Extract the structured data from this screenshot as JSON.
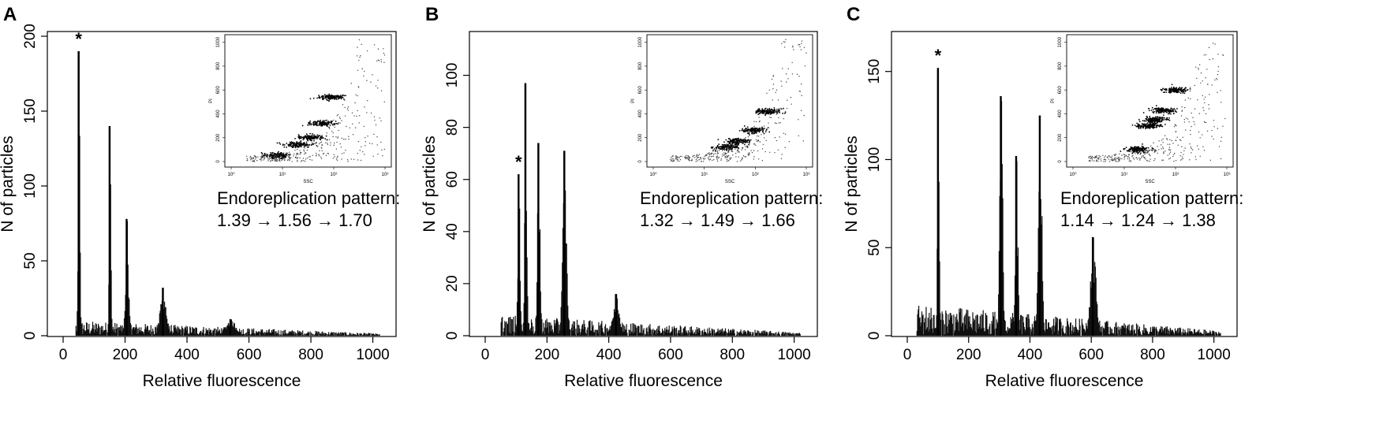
{
  "figure": {
    "panels": [
      {
        "letter": "A",
        "annotation_line1": "Endoreplication pattern:",
        "annotation_line2": "1.39 → 1.56 → 1.70",
        "star": "*"
      },
      {
        "letter": "B",
        "annotation_line1": "Endoreplication pattern:",
        "annotation_line2": "1.32 → 1.49 → 1.66",
        "star": "*"
      },
      {
        "letter": "C",
        "annotation_line1": "Endoreplication pattern:",
        "annotation_line2": "1.14 → 1.24 → 1.38",
        "star": "*"
      }
    ]
  },
  "chart_data": [
    {
      "type": "bar",
      "panel": "A",
      "xlabel": "Relative fluorescence",
      "ylabel": "N of particles",
      "xlim": [
        0,
        1024
      ],
      "ylim": [
        0,
        200
      ],
      "xticks": [
        0,
        200,
        400,
        600,
        800,
        1000
      ],
      "yticks": [
        0,
        50,
        100,
        150,
        200
      ],
      "data_range": [
        40,
        1020
      ],
      "baseline_max": 10,
      "peaks": [
        {
          "x": 50,
          "y": 190,
          "width": 4
        },
        {
          "x": 150,
          "y": 140,
          "width": 4
        },
        {
          "x": 205,
          "y": 78,
          "width": 7
        },
        {
          "x": 322,
          "y": 32,
          "width": 14
        },
        {
          "x": 540,
          "y": 11,
          "width": 25
        }
      ],
      "star_x": 50,
      "inset": {
        "xlabel": "SSC",
        "ylabel": "PI",
        "xscale": "log",
        "xlim_exp": [
          0,
          3
        ],
        "xtick_labels": [
          "10⁰",
          "10¹",
          "10²",
          "10³"
        ],
        "ylim": [
          0,
          1024
        ],
        "ytick_labels": [
          "0",
          "200",
          "400",
          "600",
          "800",
          "1000"
        ],
        "clusters": [
          {
            "log_ssc": 0.9,
            "pi": 50
          },
          {
            "log_ssc": 1.3,
            "pi": 140
          },
          {
            "log_ssc": 1.55,
            "pi": 200
          },
          {
            "log_ssc": 1.75,
            "pi": 320
          },
          {
            "log_ssc": 1.95,
            "pi": 540
          }
        ]
      }
    },
    {
      "type": "bar",
      "panel": "B",
      "xlabel": "Relative fluorescence",
      "ylabel": "N of particles",
      "xlim": [
        0,
        1024
      ],
      "ylim": [
        0,
        115
      ],
      "xticks": [
        0,
        200,
        400,
        600,
        800,
        1000
      ],
      "yticks": [
        0,
        20,
        40,
        60,
        80,
        100
      ],
      "data_range": [
        50,
        1020
      ],
      "baseline_max": 8,
      "peaks": [
        {
          "x": 108,
          "y": 62,
          "width": 5
        },
        {
          "x": 130,
          "y": 97,
          "width": 5
        },
        {
          "x": 172,
          "y": 74,
          "width": 6
        },
        {
          "x": 256,
          "y": 71,
          "width": 9
        },
        {
          "x": 423,
          "y": 16,
          "width": 15
        }
      ],
      "star_x": 108,
      "inset": {
        "xlabel": "SSC",
        "ylabel": "PI",
        "xscale": "log",
        "xlim_exp": [
          0,
          3
        ],
        "xtick_labels": [
          "10⁰",
          "10¹",
          "10²",
          "10³"
        ],
        "ylim": [
          0,
          1024
        ],
        "ytick_labels": [
          "0",
          "200",
          "400",
          "600",
          "800",
          "1000"
        ],
        "clusters": [
          {
            "log_ssc": 1.45,
            "pi": 120
          },
          {
            "log_ssc": 1.65,
            "pi": 170
          },
          {
            "log_ssc": 1.95,
            "pi": 260
          },
          {
            "log_ssc": 2.25,
            "pi": 420
          }
        ]
      }
    },
    {
      "type": "bar",
      "panel": "C",
      "xlabel": "Relative fluorescence",
      "ylabel": "N of particles",
      "xlim": [
        0,
        1024
      ],
      "ylim": [
        0,
        170
      ],
      "xticks": [
        0,
        200,
        400,
        600,
        800,
        1000
      ],
      "yticks": [
        0,
        50,
        100,
        150
      ],
      "data_range": [
        30,
        1020
      ],
      "baseline_max": 18,
      "peaks": [
        {
          "x": 100,
          "y": 152,
          "width": 4
        },
        {
          "x": 305,
          "y": 136,
          "width": 7
        },
        {
          "x": 355,
          "y": 102,
          "width": 6
        },
        {
          "x": 432,
          "y": 125,
          "width": 8
        },
        {
          "x": 605,
          "y": 56,
          "width": 13
        }
      ],
      "star_x": 100,
      "inset": {
        "xlabel": "SSC",
        "ylabel": "PI",
        "xscale": "log",
        "xlim_exp": [
          0,
          3
        ],
        "xtick_labels": [
          "10⁰",
          "10¹",
          "10²",
          "10³"
        ],
        "ylim": [
          0,
          1024
        ],
        "ytick_labels": [
          "0",
          "200",
          "400",
          "600",
          "800",
          "1000"
        ],
        "clusters": [
          {
            "log_ssc": 1.25,
            "pi": 100
          },
          {
            "log_ssc": 1.5,
            "pi": 300
          },
          {
            "log_ssc": 1.6,
            "pi": 350
          },
          {
            "log_ssc": 1.75,
            "pi": 430
          },
          {
            "log_ssc": 2.0,
            "pi": 600
          }
        ]
      }
    }
  ]
}
